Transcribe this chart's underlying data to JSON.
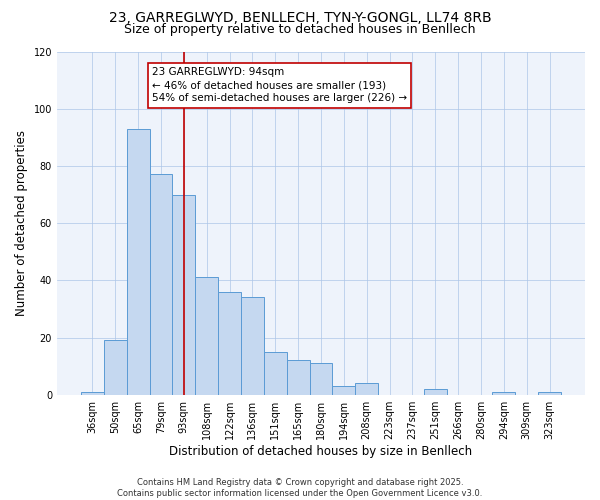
{
  "title1": "23, GARREGLWYD, BENLLECH, TYN-Y-GONGL, LL74 8RB",
  "title2": "Size of property relative to detached houses in Benllech",
  "xlabel": "Distribution of detached houses by size in Benllech",
  "ylabel": "Number of detached properties",
  "categories": [
    "36sqm",
    "50sqm",
    "65sqm",
    "79sqm",
    "93sqm",
    "108sqm",
    "122sqm",
    "136sqm",
    "151sqm",
    "165sqm",
    "180sqm",
    "194sqm",
    "208sqm",
    "223sqm",
    "237sqm",
    "251sqm",
    "266sqm",
    "280sqm",
    "294sqm",
    "309sqm",
    "323sqm"
  ],
  "values": [
    1,
    19,
    93,
    77,
    70,
    41,
    36,
    34,
    15,
    12,
    11,
    3,
    4,
    0,
    0,
    2,
    0,
    0,
    1,
    0,
    1
  ],
  "bar_color": "#c5d8f0",
  "bar_edge_color": "#5b9bd5",
  "highlight_index": 4,
  "highlight_line_color": "#c00000",
  "annotation_text": "23 GARREGLWYD: 94sqm\n← 46% of detached houses are smaller (193)\n54% of semi-detached houses are larger (226) →",
  "annotation_box_color": "#ffffff",
  "annotation_box_edge": "#c00000",
  "ylim": [
    0,
    120
  ],
  "yticks": [
    0,
    20,
    40,
    60,
    80,
    100,
    120
  ],
  "background_color": "#eef3fb",
  "footer": "Contains HM Land Registry data © Crown copyright and database right 2025.\nContains public sector information licensed under the Open Government Licence v3.0.",
  "title_fontsize": 10,
  "subtitle_fontsize": 9,
  "axis_fontsize": 8.5,
  "tick_fontsize": 7,
  "annotation_fontsize": 7.5,
  "footer_fontsize": 6
}
